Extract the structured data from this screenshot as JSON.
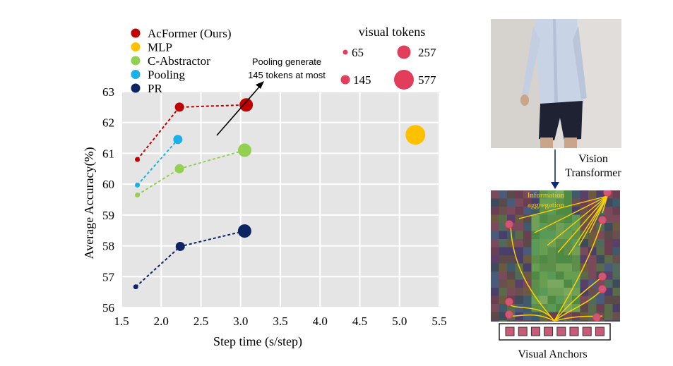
{
  "chart_data": {
    "type": "scatter",
    "xlabel": "Step time (s/step)",
    "ylabel": "Average Accuracy(%)",
    "xlim": [
      1.5,
      5.5
    ],
    "ylim": [
      56,
      63
    ],
    "xticks": [
      "1.5",
      "2.0",
      "2.5",
      "3.0",
      "3.5",
      "4.0",
      "4.5",
      "5.0",
      "5.5"
    ],
    "yticks": [
      "56",
      "57",
      "58",
      "59",
      "60",
      "61",
      "62",
      "63"
    ],
    "grid": true,
    "legend_position": "top-left",
    "series": [
      {
        "name": "AcFormer (Ours)",
        "color": "#c00000",
        "connected": true,
        "points": [
          {
            "x": 1.7,
            "y": 60.8,
            "tokens": 65
          },
          {
            "x": 2.23,
            "y": 62.5,
            "tokens": 145
          },
          {
            "x": 3.07,
            "y": 62.57,
            "tokens": 257
          }
        ]
      },
      {
        "name": "MLP",
        "color": "#ffc000",
        "connected": false,
        "points": [
          {
            "x": 5.2,
            "y": 61.6,
            "tokens": 577
          }
        ]
      },
      {
        "name": "C-Abstractor",
        "color": "#92d050",
        "connected": true,
        "points": [
          {
            "x": 1.7,
            "y": 59.65,
            "tokens": 65
          },
          {
            "x": 2.23,
            "y": 60.5,
            "tokens": 145
          },
          {
            "x": 3.05,
            "y": 61.1,
            "tokens": 257
          }
        ]
      },
      {
        "name": "Pooling",
        "color": "#1ab0e8",
        "connected": true,
        "points": [
          {
            "x": 1.7,
            "y": 59.97,
            "tokens": 65
          },
          {
            "x": 2.21,
            "y": 61.45,
            "tokens": 145
          }
        ]
      },
      {
        "name": "PR",
        "color": "#0d2563",
        "connected": true,
        "points": [
          {
            "x": 1.68,
            "y": 56.67,
            "tokens": 65
          },
          {
            "x": 2.24,
            "y": 57.98,
            "tokens": 145
          },
          {
            "x": 3.05,
            "y": 58.48,
            "tokens": 257
          }
        ]
      }
    ],
    "size_legend": {
      "title": "visual tokens",
      "items": [
        "65",
        "257",
        "145",
        "577"
      ]
    },
    "annotation": {
      "line1": "Pooling generate",
      "line2": "145 tokens at most"
    }
  },
  "diagram": {
    "vit_label_1": "Vision",
    "vit_label_2": "Transformer",
    "info_label_1": "Information",
    "info_label_2": "aggregation",
    "anchors_label": "Visual Anchors",
    "anchor_color": "#c85a7a",
    "arrow_color": "#0d2b7a",
    "aggregation_color": "#ffd000"
  }
}
